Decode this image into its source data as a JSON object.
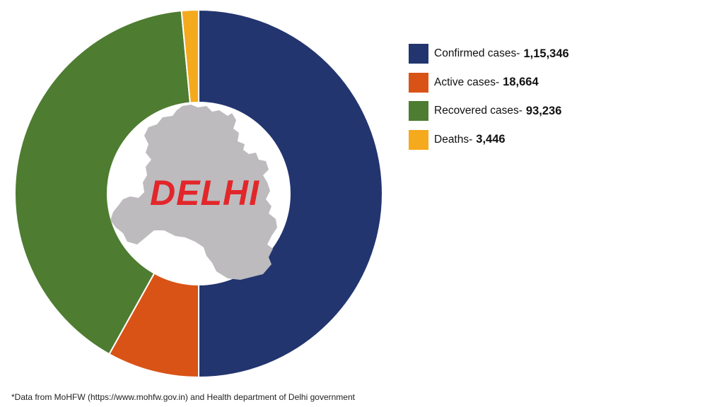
{
  "chart_data": {
    "type": "pie",
    "variant": "donut",
    "title": "",
    "center_label": "DELHI",
    "categories": [
      "Confirmed cases",
      "Active cases",
      "Recovered cases",
      "Deaths"
    ],
    "values": [
      115346,
      18664,
      93236,
      3446
    ],
    "display_values": [
      "1,15,346",
      "18,664",
      "93,236",
      "3,446"
    ],
    "colors": [
      "#22356f",
      "#d95316",
      "#4e7c31",
      "#f5a91d"
    ],
    "start_angle_deg": 0,
    "direction": "clockwise",
    "legend_position": "right"
  },
  "legend": {
    "items": [
      {
        "label": "Confirmed cases-",
        "value": "1,15,346",
        "color": "#22356f"
      },
      {
        "label": "Active cases-",
        "value": "18,664",
        "color": "#d95316"
      },
      {
        "label": "Recovered cases-",
        "value": "93,236",
        "color": "#4e7c31"
      },
      {
        "label": "Deaths-",
        "value": "3,446",
        "color": "#f5a91d"
      }
    ]
  },
  "center": {
    "label": "DELHI",
    "label_color": "#e2262a",
    "map_color": "#bdbbbe"
  },
  "footnote": "*Data from MoHFW (https://www.mohfw.gov.in) and Health department of Delhi government"
}
